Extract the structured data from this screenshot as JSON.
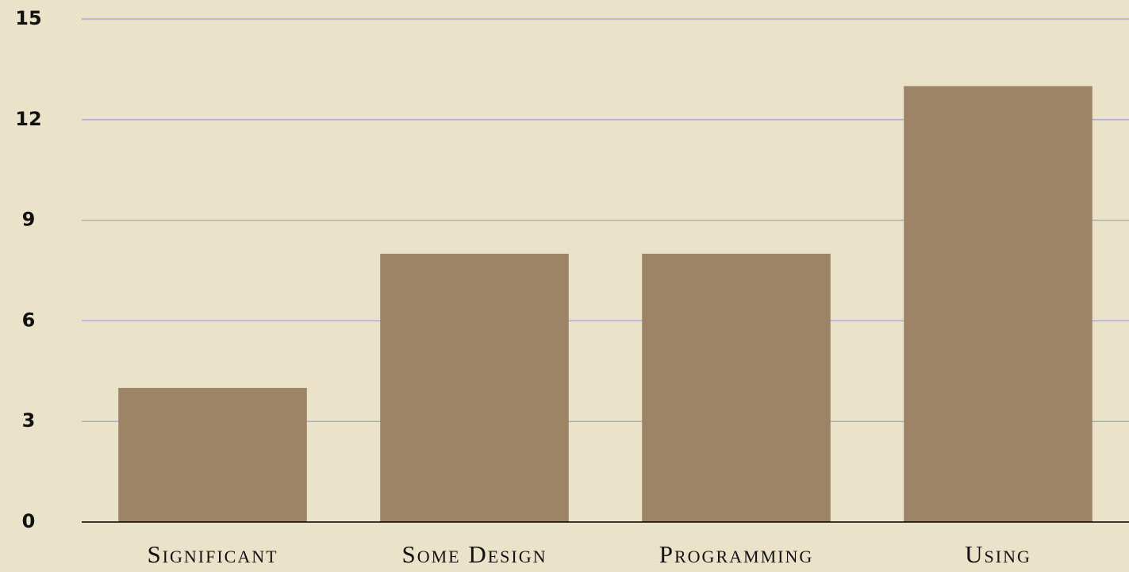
{
  "chart_data": {
    "type": "bar",
    "categories": [
      "Significant",
      "Some Design",
      "Programming",
      "Using"
    ],
    "values": [
      4,
      8,
      8,
      13
    ],
    "color": "#9e8466",
    "ylim": [
      0,
      15
    ],
    "yticks": [
      0,
      3,
      6,
      9,
      12,
      15
    ],
    "grid": true
  }
}
